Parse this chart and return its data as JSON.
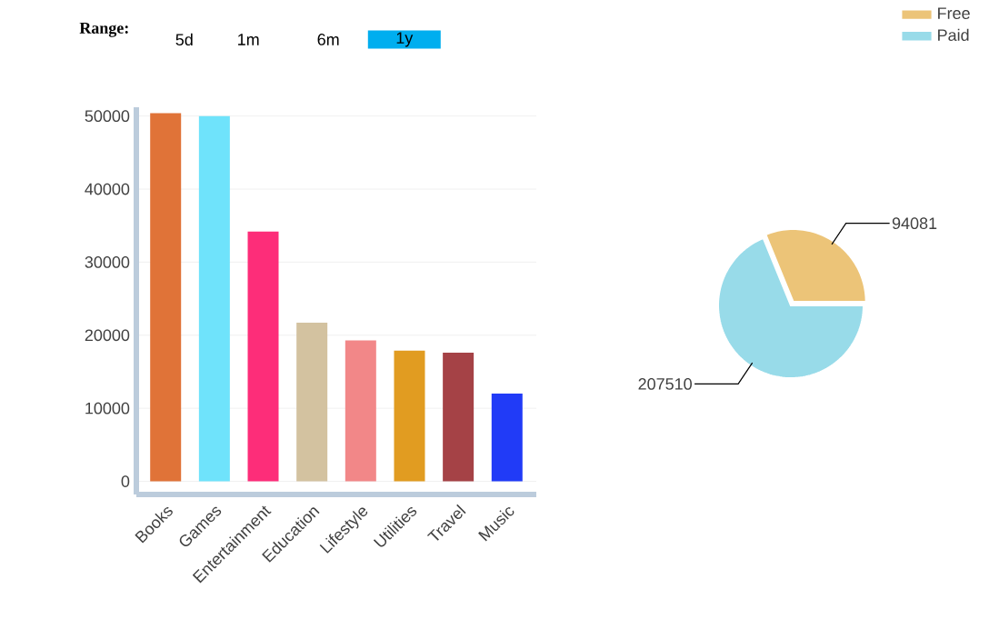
{
  "chart_data": [
    {
      "type": "bar",
      "categories": [
        "Books",
        "Games",
        "Entertainment",
        "Education",
        "Lifestyle",
        "Utilities",
        "Travel",
        "Music"
      ],
      "values": [
        50400,
        50000,
        34200,
        21700,
        19300,
        17900,
        17600,
        12000
      ],
      "colors": [
        "#e07338",
        "#6fe3fb",
        "#fd2d79",
        "#d3c2a0",
        "#f28788",
        "#e19c21",
        "#a54246",
        "#213bf7"
      ],
      "ylim": [
        -1800,
        51200
      ],
      "yticks": [
        0,
        10000,
        20000,
        30000,
        40000,
        50000
      ],
      "grid": "y",
      "annotations": [
        "Range:",
        "5d",
        "1m",
        "6m",
        "1y"
      ]
    },
    {
      "type": "pie",
      "categories": [
        "Free",
        "Paid"
      ],
      "values": [
        94081,
        207510
      ],
      "colors": [
        "#ecc478",
        "#98dbe9"
      ],
      "legend": "top right",
      "data_labels": true
    }
  ]
}
